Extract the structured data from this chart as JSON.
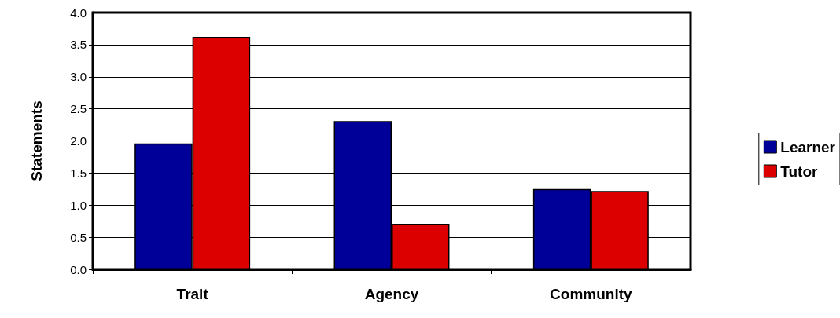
{
  "chart_data": {
    "type": "bar",
    "ylabel": "Statements",
    "categories": [
      "Trait",
      "Agency",
      "Community"
    ],
    "series": [
      {
        "name": "Learner",
        "color": "#000099",
        "values": [
          1.96,
          2.31,
          1.25
        ]
      },
      {
        "name": "Tutor",
        "color": "#dd0000",
        "values": [
          3.62,
          0.71,
          1.22
        ]
      }
    ],
    "ylim": [
      0,
      4
    ],
    "yticks": [
      {
        "value": 0,
        "label": "0.0"
      },
      {
        "value": 0.5,
        "label": "0.5"
      },
      {
        "value": 1,
        "label": "1.0"
      },
      {
        "value": 1.5,
        "label": "1.5"
      },
      {
        "value": 2,
        "label": "2.0"
      },
      {
        "value": 2.5,
        "label": "2.5"
      },
      {
        "value": 3,
        "label": "3.0"
      },
      {
        "value": 3.5,
        "label": "3.5"
      },
      {
        "value": 4,
        "label": "4.0"
      }
    ],
    "grid": "y",
    "legend": "right"
  }
}
